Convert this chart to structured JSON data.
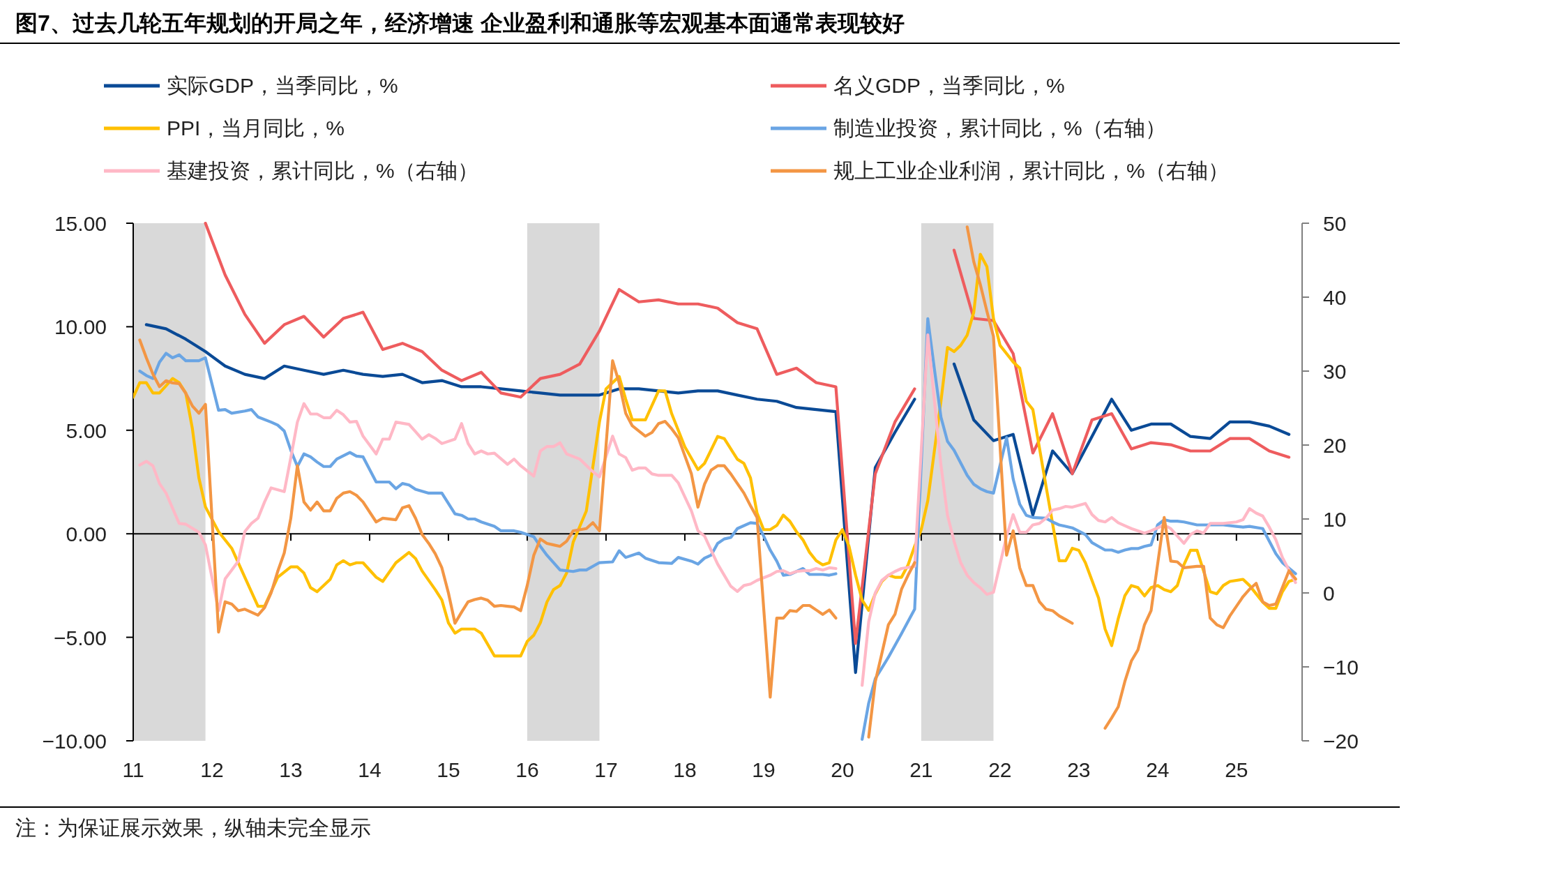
{
  "chart_data": {
    "type": "line",
    "title": "图7、过去几轮五年规划的开局之年，经济增速 企业盈利和通胀等宏观基本面通常表现较好",
    "annotations": [
      "注：为保证展示效果，纵轴未完全显示"
    ],
    "legend": "top",
    "xlim": [
      "2011-01",
      "2025-11"
    ],
    "xticks": [
      {
        "value": "2011-01",
        "label": "11"
      },
      {
        "value": "2012-01",
        "label": "12"
      },
      {
        "value": "2013-01",
        "label": "13"
      },
      {
        "value": "2014-01",
        "label": "14"
      },
      {
        "value": "2015-01",
        "label": "15"
      },
      {
        "value": "2016-01",
        "label": "16"
      },
      {
        "value": "2017-01",
        "label": "17"
      },
      {
        "value": "2018-01",
        "label": "18"
      },
      {
        "value": "2019-01",
        "label": "19"
      },
      {
        "value": "2020-01",
        "label": "20"
      },
      {
        "value": "2021-01",
        "label": "21"
      },
      {
        "value": "2022-01",
        "label": "22"
      },
      {
        "value": "2023-01",
        "label": "23"
      },
      {
        "value": "2024-01",
        "label": "24"
      },
      {
        "value": "2025-01",
        "label": "25"
      }
    ],
    "ylim": [
      -10,
      15
    ],
    "yticks": [
      {
        "value": -10,
        "label": "−10.00"
      },
      {
        "value": -5,
        "label": "−5.00"
      },
      {
        "value": 0,
        "label": "0.00"
      },
      {
        "value": 5,
        "label": "5.00"
      },
      {
        "value": 10,
        "label": "10.00"
      },
      {
        "value": 15,
        "label": "15.00"
      }
    ],
    "y2lim": [
      -20,
      50
    ],
    "y2ticks": [
      {
        "value": -20,
        "label": "−20"
      },
      {
        "value": -10,
        "label": "−10"
      },
      0,
      10,
      20,
      30,
      40,
      50
    ],
    "bands": [
      {
        "axis": "x",
        "from": "2011-01",
        "to": "2011-12",
        "color": "#d9d9d9"
      },
      {
        "axis": "x",
        "from": "2016-01",
        "to": "2016-12",
        "color": "#d9d9d9"
      },
      {
        "axis": "x",
        "from": "2021-01",
        "to": "2021-12",
        "color": "#d9d9d9"
      }
    ],
    "ref_lines": [
      {
        "axis": "y",
        "value": 0,
        "color": "#000000"
      }
    ],
    "series": [
      {
        "name": "实际GDP，当季同比，%",
        "color": "#0a4a96",
        "x": [
          "2011-03",
          "2011-06",
          "2011-09",
          "2011-12",
          "2012-03",
          "2012-06",
          "2012-09",
          "2012-12",
          "2013-03",
          "2013-06",
          "2013-09",
          "2013-12",
          "2014-03",
          "2014-06",
          "2014-09",
          "2014-12",
          "2015-03",
          "2015-06",
          "2015-09",
          "2015-12",
          "2016-03",
          "2016-06",
          "2016-09",
          "2016-12",
          "2017-03",
          "2017-06",
          "2017-09",
          "2017-12",
          "2018-03",
          "2018-06",
          "2018-09",
          "2018-12",
          "2019-03",
          "2019-06",
          "2019-09",
          "2019-12",
          "2020-03",
          "2020-06",
          "2020-09",
          "2020-12",
          "2021-03",
          "2021-06",
          "2021-09",
          "2021-12",
          "2022-03",
          "2022-06",
          "2022-09",
          "2022-12",
          "2023-03",
          "2023-06",
          "2023-09",
          "2023-12",
          "2024-03",
          "2024-06",
          "2024-09",
          "2024-12",
          "2025-03",
          "2025-06",
          "2025-09"
        ],
        "values": [
          10.1,
          9.9,
          9.4,
          8.8,
          8.1,
          7.7,
          7.5,
          8.1,
          7.9,
          7.7,
          7.9,
          7.7,
          7.6,
          7.7,
          7.3,
          7.4,
          7.1,
          7.1,
          7.0,
          6.9,
          6.8,
          6.7,
          6.7,
          6.7,
          7.0,
          7.0,
          6.9,
          6.8,
          6.9,
          6.9,
          6.7,
          6.5,
          6.4,
          6.1,
          6.0,
          5.9,
          -6.7,
          3.2,
          4.9,
          6.5,
          null,
          8.2,
          5.5,
          4.5,
          4.8,
          0.9,
          4.0,
          2.9,
          4.7,
          6.5,
          5.0,
          5.3,
          5.3,
          4.7,
          4.6,
          5.4,
          5.4,
          5.2,
          4.8
        ]
      },
      {
        "name": "名义GDP，当季同比，%",
        "color": "#ee5c5e",
        "x": [
          "2011-12",
          "2012-03",
          "2012-06",
          "2012-09",
          "2012-12",
          "2013-03",
          "2013-06",
          "2013-09",
          "2013-12",
          "2014-03",
          "2014-06",
          "2014-09",
          "2014-12",
          "2015-03",
          "2015-06",
          "2015-09",
          "2015-12",
          "2016-03",
          "2016-06",
          "2016-09",
          "2016-12",
          "2017-03",
          "2017-06",
          "2017-09",
          "2017-12",
          "2018-03",
          "2018-06",
          "2018-09",
          "2018-12",
          "2019-03",
          "2019-06",
          "2019-09",
          "2019-12",
          "2020-03",
          "2020-06",
          "2020-09",
          "2020-12",
          "2021-03",
          "2021-06",
          "2021-09",
          "2021-12",
          "2022-03",
          "2022-06",
          "2022-09",
          "2022-12",
          "2023-03",
          "2023-06",
          "2023-09",
          "2023-12",
          "2024-03",
          "2024-06",
          "2024-09",
          "2024-12",
          "2025-03",
          "2025-06",
          "2025-09"
        ],
        "values": [
          15.0,
          12.5,
          10.6,
          9.2,
          10.1,
          10.5,
          9.5,
          10.4,
          10.7,
          8.9,
          9.2,
          8.8,
          7.9,
          7.4,
          7.8,
          6.8,
          6.6,
          7.5,
          7.7,
          8.2,
          9.8,
          11.8,
          11.2,
          11.3,
          11.1,
          11.1,
          10.9,
          10.2,
          9.9,
          7.7,
          8.0,
          7.3,
          7.1,
          -5.3,
          2.9,
          5.4,
          7.0,
          null,
          13.7,
          10.4,
          10.3,
          8.7,
          3.9,
          5.8,
          2.9,
          5.5,
          5.8,
          4.1,
          4.4,
          4.3,
          4.0,
          4.0,
          4.6,
          4.6,
          4.0,
          3.7
        ]
      },
      {
        "name": "PPI，当月同比，%",
        "color": "#ffc000",
        "x": [
          "2011-01",
          "2011-02",
          "2011-03",
          "2011-04",
          "2011-05",
          "2011-07",
          "2011-08",
          "2011-09",
          "2011-10",
          "2011-11",
          "2011-12",
          "2012-02",
          "2012-04",
          "2012-06",
          "2012-08",
          "2012-09",
          "2012-11",
          "2013-01",
          "2013-02",
          "2013-03",
          "2013-04",
          "2013-05",
          "2013-07",
          "2013-08",
          "2013-09",
          "2013-10",
          "2013-11",
          "2013-12",
          "2014-02",
          "2014-03",
          "2014-05",
          "2014-07",
          "2014-08",
          "2014-09",
          "2014-11",
          "2014-12",
          "2015-01",
          "2015-02",
          "2015-03",
          "2015-05",
          "2015-06",
          "2015-08",
          "2015-10",
          "2015-12",
          "2016-01",
          "2016-02",
          "2016-03",
          "2016-04",
          "2016-05",
          "2016-06",
          "2016-07",
          "2016-08",
          "2016-10",
          "2016-12",
          "2017-01",
          "2017-03",
          "2017-04",
          "2017-05",
          "2017-07",
          "2017-09",
          "2017-10",
          "2017-11",
          "2018-01",
          "2018-03",
          "2018-04",
          "2018-06",
          "2018-07",
          "2018-09",
          "2018-10",
          "2018-11",
          "2018-12",
          "2019-01",
          "2019-02",
          "2019-03",
          "2019-04",
          "2019-05",
          "2019-06",
          "2019-07",
          "2019-08",
          "2019-09",
          "2019-10",
          "2019-11",
          "2019-12",
          "2020-01",
          "2020-02",
          "2020-03",
          "2020-04",
          "2020-05",
          "2020-06",
          "2020-07",
          "2020-08",
          "2020-09",
          "2020-10",
          "2020-11",
          "2020-12",
          "2021-01",
          "2021-02",
          "2021-03",
          "2021-04",
          "2021-05",
          "2021-06",
          "2021-07",
          "2021-08",
          "2021-09",
          "2021-10",
          "2021-11",
          "2021-12",
          "2022-01",
          "2022-03",
          "2022-04",
          "2022-05",
          "2022-06",
          "2022-08",
          "2022-10",
          "2022-11",
          "2022-12",
          "2023-01",
          "2023-02",
          "2023-04",
          "2023-05",
          "2023-06",
          "2023-07",
          "2023-08",
          "2023-09",
          "2023-10",
          "2023-11",
          "2023-12",
          "2024-01",
          "2024-02",
          "2024-03",
          "2024-04",
          "2024-05",
          "2024-06",
          "2024-07",
          "2024-08",
          "2024-09",
          "2024-10",
          "2024-11",
          "2024-12",
          "2025-02",
          "2025-03",
          "2025-05",
          "2025-06",
          "2025-07",
          "2025-08",
          "2025-09",
          "2025-10"
        ],
        "values": [
          6.6,
          7.3,
          7.3,
          6.8,
          6.8,
          7.5,
          7.3,
          6.8,
          5.1,
          2.7,
          1.3,
          0.1,
          -0.7,
          -2.1,
          -3.5,
          -3.5,
          -2.1,
          -1.6,
          -1.6,
          -1.9,
          -2.6,
          -2.8,
          -2.2,
          -1.5,
          -1.3,
          -1.5,
          -1.4,
          -1.4,
          -2.1,
          -2.3,
          -1.4,
          -0.9,
          -1.2,
          -1.8,
          -2.7,
          -3.2,
          -4.3,
          -4.8,
          -4.6,
          -4.6,
          -4.8,
          -5.9,
          -5.9,
          -5.9,
          -5.2,
          -4.9,
          -4.3,
          -3.3,
          -2.7,
          -2.5,
          -1.9,
          -0.4,
          1.1,
          5.4,
          7.0,
          7.6,
          6.5,
          5.5,
          5.5,
          6.9,
          6.9,
          5.8,
          4.2,
          3.1,
          3.4,
          4.7,
          4.6,
          3.6,
          3.4,
          2.7,
          1.0,
          0.2,
          0.2,
          0.4,
          0.9,
          0.6,
          0.1,
          -0.3,
          -0.9,
          -1.3,
          -1.5,
          -1.4,
          -0.3,
          0.2,
          -0.6,
          -2.0,
          -3.2,
          -3.7,
          -2.9,
          -2.3,
          -2.0,
          -2.1,
          -2.1,
          -1.5,
          -0.6,
          0.2,
          1.6,
          4.0,
          6.4,
          9.0,
          8.8,
          9.1,
          9.6,
          10.7,
          13.5,
          12.9,
          10.4,
          9.1,
          8.3,
          8.0,
          6.4,
          6.0,
          2.3,
          -1.3,
          -1.3,
          -0.7,
          -0.8,
          -1.4,
          -3.1,
          -4.6,
          -5.4,
          -4.1,
          -3.0,
          -2.5,
          -2.6,
          -3.0,
          -2.6,
          -2.5,
          -2.7,
          -2.8,
          -2.5,
          -1.5,
          -0.8,
          -0.8,
          -1.8,
          -2.8,
          -2.9,
          -2.5,
          -2.3,
          -2.2,
          -2.5,
          -3.3,
          -3.6,
          -3.6,
          -2.8,
          -2.3,
          -2.2
        ]
      },
      {
        "name": "制造业投资，累计同比，%（右轴）",
        "color": "#6aa5e4",
        "axis": "y2",
        "x": [
          "2011-02",
          "2011-03",
          "2011-04",
          "2011-05",
          "2011-06",
          "2011-07",
          "2011-08",
          "2011-09",
          "2011-10",
          "2011-11",
          "2011-12",
          "2012-02",
          "2012-03",
          "2012-04",
          "2012-06",
          "2012-07",
          "2012-08",
          "2012-10",
          "2012-11",
          "2012-12",
          "2013-01",
          "2013-02",
          "2013-03",
          "2013-04",
          "2013-05",
          "2013-06",
          "2013-07",
          "2013-08",
          "2013-10",
          "2013-11",
          "2013-12",
          "2014-02",
          "2014-03",
          "2014-04",
          "2014-05",
          "2014-06",
          "2014-07",
          "2014-08",
          "2014-10",
          "2014-12",
          "2015-02",
          "2015-03",
          "2015-04",
          "2015-05",
          "2015-06",
          "2015-08",
          "2015-09",
          "2015-11",
          "2015-12",
          "2016-02",
          "2016-03",
          "2016-04",
          "2016-06",
          "2016-08",
          "2016-09",
          "2016-10",
          "2016-12",
          "2017-02",
          "2017-03",
          "2017-04",
          "2017-06",
          "2017-07",
          "2017-09",
          "2017-11",
          "2017-12",
          "2018-02",
          "2018-03",
          "2018-04",
          "2018-05",
          "2018-06",
          "2018-07",
          "2018-08",
          "2018-09",
          "2018-11",
          "2018-12",
          "2019-01",
          "2019-02",
          "2019-03",
          "2019-04",
          "2019-05",
          "2019-07",
          "2019-08",
          "2019-10",
          "2019-11",
          "2019-12",
          "2020-03",
          "2020-04",
          "2020-05",
          "2020-06",
          "2020-08",
          "2020-10",
          "2020-12",
          "2021-02",
          "2021-03",
          "2021-04",
          "2021-05",
          "2021-06",
          "2021-07",
          "2021-08",
          "2021-09",
          "2021-10",
          "2021-11",
          "2021-12",
          "2022-02",
          "2022-03",
          "2022-04",
          "2022-05",
          "2022-06",
          "2022-08",
          "2022-09",
          "2022-10",
          "2022-12",
          "2023-02",
          "2023-03",
          "2023-04",
          "2023-05",
          "2023-06",
          "2023-07",
          "2023-08",
          "2023-09",
          "2023-10",
          "2023-11",
          "2023-12",
          "2024-01",
          "2024-02",
          "2024-03",
          "2024-04",
          "2024-05",
          "2024-07",
          "2024-08",
          "2024-09",
          "2024-10",
          "2024-11",
          "2025-01",
          "2025-02",
          "2025-03",
          "2025-05",
          "2025-06",
          "2025-07",
          "2025-08",
          "2025-10"
        ],
        "values": [
          30.0,
          29.4,
          29.0,
          31.2,
          32.4,
          31.8,
          32.2,
          31.4,
          31.4,
          31.4,
          31.8,
          24.7,
          24.8,
          24.3,
          24.6,
          24.8,
          23.8,
          23.1,
          22.7,
          21.9,
          19.3,
          17.1,
          18.8,
          18.4,
          17.7,
          17.1,
          17.1,
          18.1,
          19.0,
          18.5,
          18.4,
          15.0,
          15.0,
          15.0,
          14.1,
          14.8,
          14.6,
          14.0,
          13.5,
          13.5,
          10.7,
          10.5,
          10.0,
          10.0,
          9.6,
          9.0,
          8.4,
          8.4,
          8.2,
          7.6,
          6.3,
          5.1,
          3.1,
          2.9,
          3.1,
          3.1,
          4.1,
          4.2,
          5.7,
          4.8,
          5.4,
          4.7,
          4.1,
          4.0,
          4.8,
          4.3,
          3.9,
          4.7,
          5.1,
          6.7,
          7.3,
          7.5,
          8.7,
          9.5,
          9.4,
          7.7,
          5.8,
          4.3,
          2.4,
          2.5,
          3.3,
          2.5,
          2.5,
          2.4,
          2.6,
          null,
          -19.8,
          -14.9,
          -11.6,
          -8.7,
          -5.5,
          -2.2,
          37.1,
          30.3,
          23.8,
          20.5,
          19.3,
          17.6,
          15.9,
          14.7,
          14.1,
          13.7,
          13.5,
          21.0,
          15.4,
          12.0,
          10.5,
          10.2,
          10.1,
          9.6,
          9.2,
          8.8,
          7.9,
          6.8,
          6.3,
          5.8,
          5.8,
          5.5,
          5.8,
          6.0,
          6.0,
          6.3,
          6.5,
          9.2,
          9.9,
          9.7,
          9.7,
          9.6,
          9.2,
          9.2,
          9.2,
          9.2,
          9.2,
          9.0,
          8.9,
          9.0,
          8.7,
          7.0,
          5.3,
          4.1,
          2.6
        ]
      },
      {
        "name": "基建投资，累计同比，%（右轴）",
        "color": "#ffb8c6",
        "axis": "y2",
        "x": [
          "2011-02",
          "2011-03",
          "2011-04",
          "2011-05",
          "2011-06",
          "2011-08",
          "2011-09",
          "2011-11",
          "2011-12",
          "2012-02",
          "2012-03",
          "2012-04",
          "2012-05",
          "2012-06",
          "2012-07",
          "2012-08",
          "2012-09",
          "2012-10",
          "2012-12",
          "2013-01",
          "2013-02",
          "2013-03",
          "2013-04",
          "2013-05",
          "2013-06",
          "2013-07",
          "2013-08",
          "2013-09",
          "2013-10",
          "2013-11",
          "2013-12",
          "2014-02",
          "2014-03",
          "2014-04",
          "2014-05",
          "2014-07",
          "2014-08",
          "2014-09",
          "2014-10",
          "2014-11",
          "2014-12",
          "2015-02",
          "2015-03",
          "2015-04",
          "2015-05",
          "2015-06",
          "2015-07",
          "2015-08",
          "2015-10",
          "2015-11",
          "2015-12",
          "2016-02",
          "2016-03",
          "2016-04",
          "2016-05",
          "2016-06",
          "2016-07",
          "2016-09",
          "2016-11",
          "2016-12",
          "2017-02",
          "2017-03",
          "2017-04",
          "2017-05",
          "2017-06",
          "2017-07",
          "2017-08",
          "2017-09",
          "2017-11",
          "2017-12",
          "2018-02",
          "2018-03",
          "2018-04",
          "2018-05",
          "2018-06",
          "2018-07",
          "2018-08",
          "2018-09",
          "2018-10",
          "2018-11",
          "2018-12",
          "2019-02",
          "2019-03",
          "2019-04",
          "2019-05",
          "2019-06",
          "2019-07",
          "2019-08",
          "2019-09",
          "2019-10",
          "2019-11",
          "2019-12",
          "2020-03",
          "2020-04",
          "2020-05",
          "2020-06",
          "2020-07",
          "2020-08",
          "2020-09",
          "2020-10",
          "2020-12",
          "2021-02",
          "2021-03",
          "2021-04",
          "2021-05",
          "2021-06",
          "2021-07",
          "2021-08",
          "2021-09",
          "2021-10",
          "2021-11",
          "2021-12",
          "2022-02",
          "2022-03",
          "2022-04",
          "2022-05",
          "2022-06",
          "2022-07",
          "2022-08",
          "2022-09",
          "2022-10",
          "2022-11",
          "2022-12",
          "2023-02",
          "2023-03",
          "2023-04",
          "2023-05",
          "2023-06",
          "2023-07",
          "2023-08",
          "2023-09",
          "2023-10",
          "2023-11",
          "2023-12",
          "2024-01",
          "2024-02",
          "2024-03",
          "2024-04",
          "2024-05",
          "2024-06",
          "2024-07",
          "2024-08",
          "2024-09",
          "2024-11",
          "2025-01",
          "2025-02",
          "2025-03",
          "2025-04",
          "2025-05",
          "2025-06",
          "2025-07",
          "2025-08",
          "2025-10"
        ],
        "values": [
          17.3,
          17.8,
          17.2,
          14.8,
          13.5,
          9.4,
          9.3,
          8.2,
          6.5,
          -2.4,
          1.9,
          3.1,
          4.3,
          8.3,
          9.4,
          10.1,
          12.3,
          14.2,
          13.7,
          18.3,
          23.1,
          25.6,
          24.2,
          24.2,
          23.7,
          23.7,
          24.7,
          24.1,
          23.1,
          23.2,
          21.2,
          18.8,
          20.8,
          20.8,
          23.1,
          22.8,
          21.8,
          20.8,
          21.4,
          20.9,
          20.2,
          20.8,
          22.9,
          20.2,
          18.8,
          19.2,
          18.8,
          18.9,
          17.4,
          18.1,
          17.2,
          15.8,
          19.2,
          19.8,
          19.8,
          20.3,
          18.8,
          18.1,
          16.4,
          15.7,
          21.2,
          18.8,
          18.3,
          16.6,
          16.9,
          16.9,
          16.1,
          15.9,
          15.9,
          14.9,
          11.1,
          8.4,
          7.7,
          5.8,
          3.9,
          2.4,
          0.9,
          0.2,
          1.0,
          1.2,
          1.7,
          2.4,
          2.9,
          3.0,
          2.6,
          2.9,
          3.0,
          3.0,
          3.3,
          3.1,
          3.4,
          3.3,
          null,
          -12.5,
          -3.9,
          0.0,
          1.7,
          2.4,
          2.9,
          3.3,
          3.6,
          34.9,
          26.0,
          17.3,
          10.5,
          7.0,
          4.1,
          2.4,
          1.4,
          0.7,
          -0.2,
          0.1,
          7.7,
          10.6,
          8.2,
          8.2,
          9.2,
          9.4,
          10.1,
          11.2,
          11.4,
          11.7,
          11.6,
          12.1,
          10.6,
          9.8,
          9.6,
          10.2,
          9.5,
          9.1,
          8.7,
          8.4,
          8.1,
          8.4,
          8.8,
          9.2,
          8.7,
          7.7,
          6.7,
          7.9,
          8.4,
          8.1,
          9.4,
          9.4,
          9.6,
          9.9,
          11.4,
          10.8,
          10.4,
          8.9,
          7.2,
          4.8,
          1.4
        ]
      },
      {
        "name": "规上工业企业利润，累计同比，%（右轴）",
        "color": "#f39644",
        "axis": "y2",
        "x": [
          "2011-02",
          "2011-03",
          "2011-04",
          "2011-05",
          "2011-06",
          "2011-07",
          "2011-08",
          "2011-09",
          "2011-10",
          "2011-11",
          "2011-12",
          "2012-02",
          "2012-03",
          "2012-04",
          "2012-05",
          "2012-06",
          "2012-07",
          "2012-08",
          "2012-09",
          "2012-10",
          "2012-11",
          "2012-12",
          "2013-01",
          "2013-02",
          "2013-03",
          "2013-04",
          "2013-05",
          "2013-06",
          "2013-07",
          "2013-08",
          "2013-09",
          "2013-10",
          "2013-11",
          "2013-12",
          "2014-02",
          "2014-03",
          "2014-05",
          "2014-06",
          "2014-07",
          "2014-08",
          "2014-09",
          "2014-10",
          "2014-11",
          "2014-12",
          "2015-01",
          "2015-02",
          "2015-03",
          "2015-04",
          "2015-05",
          "2015-06",
          "2015-07",
          "2015-08",
          "2015-09",
          "2015-10",
          "2015-11",
          "2015-12",
          "2016-01",
          "2016-02",
          "2016-03",
          "2016-04",
          "2016-05",
          "2016-06",
          "2016-07",
          "2016-08",
          "2016-10",
          "2016-11",
          "2016-12",
          "2017-02",
          "2017-03",
          "2017-04",
          "2017-05",
          "2017-06",
          "2017-07",
          "2017-08",
          "2017-09",
          "2017-10",
          "2017-11",
          "2017-12",
          "2018-02",
          "2018-03",
          "2018-04",
          "2018-05",
          "2018-06",
          "2018-07",
          "2018-08",
          "2018-09",
          "2018-10",
          "2018-11",
          "2018-12",
          "2019-02",
          "2019-03",
          "2019-04",
          "2019-05",
          "2019-06",
          "2019-07",
          "2019-08",
          "2019-09",
          "2019-10",
          "2019-11",
          "2019-12",
          "2020-02",
          "2020-05",
          "2020-06",
          "2020-07",
          "2020-08",
          "2020-09",
          "2020-10",
          "2020-11",
          "2020-12",
          "2021-02",
          "2021-08",
          "2021-09",
          "2021-10",
          "2021-11",
          "2021-12",
          "2022-02",
          "2022-03",
          "2022-04",
          "2022-05",
          "2022-06",
          "2022-07",
          "2022-08",
          "2022-09",
          "2022-10",
          "2022-11",
          "2022-12",
          "2023-02",
          "2023-05",
          "2023-06",
          "2023-07",
          "2023-08",
          "2023-09",
          "2023-10",
          "2023-11",
          "2023-12",
          "2024-02",
          "2024-03",
          "2024-04",
          "2024-05",
          "2024-07",
          "2024-08",
          "2024-09",
          "2024-10",
          "2024-11",
          "2024-12",
          "2025-02",
          "2025-03",
          "2025-04",
          "2025-05",
          "2025-06",
          "2025-07",
          "2025-09",
          "2025-10"
        ],
        "values": [
          34.2,
          31.8,
          29.6,
          27.9,
          28.7,
          28.4,
          28.3,
          27.0,
          25.3,
          24.3,
          25.5,
          -5.3,
          -1.2,
          -1.5,
          -2.4,
          -2.2,
          -2.6,
          -3.0,
          -2.0,
          0.0,
          2.9,
          5.4,
          10.1,
          17.2,
          12.3,
          11.2,
          12.3,
          11.1,
          11.1,
          12.8,
          13.5,
          13.7,
          13.2,
          12.3,
          9.6,
          10.1,
          9.9,
          11.5,
          11.8,
          10.1,
          7.9,
          6.7,
          5.3,
          3.4,
          0.0,
          -4.1,
          -2.6,
          -1.2,
          -0.9,
          -0.7,
          -1.0,
          -1.8,
          -1.7,
          -1.8,
          -1.9,
          -2.4,
          1.0,
          5.1,
          7.3,
          6.7,
          6.5,
          6.3,
          7.0,
          8.4,
          8.7,
          9.5,
          8.4,
          31.4,
          28.4,
          24.3,
          22.6,
          21.9,
          21.2,
          21.7,
          22.9,
          23.2,
          22.2,
          21.0,
          16.1,
          11.6,
          14.7,
          16.6,
          17.2,
          17.2,
          16.1,
          14.8,
          13.5,
          11.8,
          10.2,
          -14.1,
          -3.4,
          -3.4,
          -2.4,
          -2.5,
          -1.7,
          -1.7,
          -2.3,
          -2.9,
          -2.3,
          -3.4,
          null,
          -19.5,
          -12.0,
          -8.2,
          -4.3,
          -2.9,
          0.5,
          2.4,
          4.1,
          null,
          49.5,
          44.8,
          41.7,
          38.1,
          34.7,
          5.1,
          8.4,
          3.4,
          1.0,
          1.0,
          -1.2,
          -2.2,
          -2.4,
          -3.1,
          -3.6,
          -4.1,
          null,
          -18.3,
          -16.9,
          -15.4,
          -12.0,
          -9.2,
          -7.7,
          -4.3,
          -2.4,
          10.2,
          4.3,
          4.2,
          3.4,
          3.6,
          3.6,
          -3.4,
          -4.3,
          -4.7,
          -3.1,
          -0.5,
          0.5,
          1.3,
          -1.2,
          -1.7,
          -1.5,
          3.0,
          1.9
        ]
      }
    ]
  }
}
